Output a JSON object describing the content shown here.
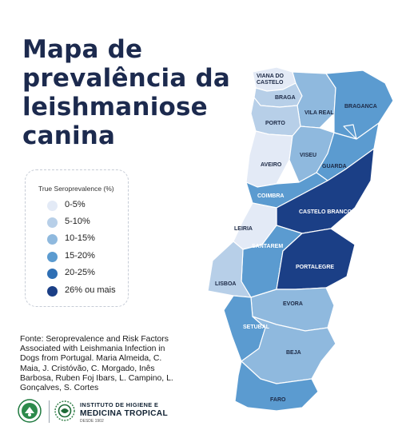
{
  "title": {
    "line1": "Mapa de",
    "line2": "prevalência da",
    "line3": "leishmaniose",
    "line4": "canina"
  },
  "legend": {
    "title": "True Seroprevalence (%)",
    "items": [
      {
        "label": "0-5%",
        "color": "#e3eaf6"
      },
      {
        "label": "5-10%",
        "color": "#b7cfe8"
      },
      {
        "label": "10-15%",
        "color": "#8fb9de"
      },
      {
        "label": "15-20%",
        "color": "#5b9bd0"
      },
      {
        "label": "20-25%",
        "color": "#2f6fb4"
      },
      {
        "label": "26% ou mais",
        "color": "#1b3f86"
      }
    ]
  },
  "source": "Fonte: Seroprevalence and Risk Factors Associated with Leishmania Infection in Dogs from Portugal. Maria Almeida, C. Maia, J. Cristóvão, C. Morgado, Inês Barbosa, Ruben Foj Ibars, L. Campino, L. Gonçalves, S. Cortes",
  "footer": {
    "org_line1": "INSTITUTO DE HIGIENE E",
    "org_line2": "MEDICINA TROPICAL",
    "org_line3": "DESDE 1902"
  },
  "map": {
    "districts": [
      {
        "name": "VIANA DO CASTELO",
        "color": "#e3eaf6"
      },
      {
        "name": "BRAGA",
        "color": "#b7cfe8"
      },
      {
        "name": "VILA REAL",
        "color": "#8fb9de"
      },
      {
        "name": "BRAGANCA",
        "color": "#5b9bd0"
      },
      {
        "name": "PORTO",
        "color": "#b7cfe8"
      },
      {
        "name": "AVEIRO",
        "color": "#e3eaf6"
      },
      {
        "name": "VISEU",
        "color": "#8fb9de"
      },
      {
        "name": "GUARDA",
        "color": "#5b9bd0"
      },
      {
        "name": "COIMBRA",
        "color": "#5b9bd0"
      },
      {
        "name": "CASTELO BRANCO",
        "color": "#1b3f86"
      },
      {
        "name": "LEIRIA",
        "color": "#e3eaf6"
      },
      {
        "name": "SANTAREM",
        "color": "#5b9bd0"
      },
      {
        "name": "PORTALEGRE",
        "color": "#1b3f86"
      },
      {
        "name": "LISBOA",
        "color": "#b7cfe8"
      },
      {
        "name": "EVORA",
        "color": "#8fb9de"
      },
      {
        "name": "SETUBAL",
        "color": "#5b9bd0"
      },
      {
        "name": "BEJA",
        "color": "#8fb9de"
      },
      {
        "name": "FARO",
        "color": "#5b9bd0"
      }
    ]
  }
}
